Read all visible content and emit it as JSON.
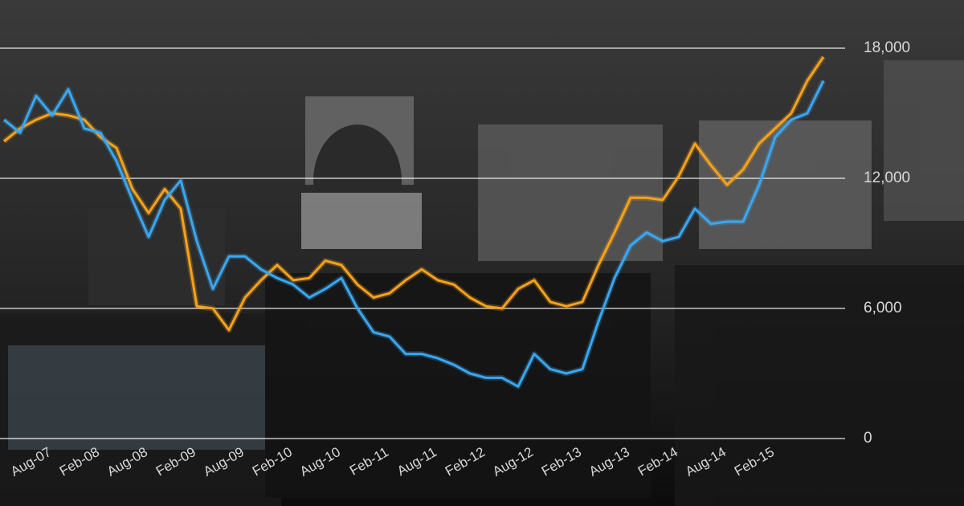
{
  "chart_data": {
    "type": "line",
    "categories": [
      null,
      null,
      null,
      "Aug-07",
      null,
      null,
      "Feb-08",
      null,
      null,
      "Aug-08",
      null,
      null,
      "Feb-09",
      null,
      null,
      "Aug-09",
      null,
      null,
      "Feb-10",
      null,
      null,
      "Aug-10",
      null,
      null,
      "Feb-11",
      null,
      null,
      "Aug-11",
      null,
      null,
      "Feb-12",
      null,
      null,
      "Aug-12",
      null,
      null,
      "Feb-13",
      null,
      null,
      "Aug-13",
      null,
      null,
      "Feb-14",
      null,
      null,
      "Aug-14",
      null,
      null,
      "Feb-15",
      null,
      null,
      null
    ],
    "series": [
      {
        "color": "#f7a21b",
        "values": [
          13700,
          14300,
          14700,
          15000,
          14900,
          14700,
          13900,
          13400,
          11500,
          10400,
          11500,
          10600,
          6100,
          6000,
          5000,
          6500,
          7300,
          8000,
          7300,
          7400,
          8200,
          8000,
          7100,
          6500,
          6700,
          7300,
          7800,
          7300,
          7100,
          6500,
          6100,
          6000,
          6900,
          7300,
          6300,
          6100,
          6300,
          8000,
          9500,
          11100,
          11100,
          11000,
          12100,
          13600,
          12600,
          11700,
          12400,
          13600,
          14300,
          15000,
          16500,
          17600
        ]
      },
      {
        "color": "#3ba7f0",
        "values": [
          14700,
          14100,
          15800,
          14900,
          16100,
          14300,
          14100,
          12800,
          11000,
          9300,
          11000,
          11900,
          9100,
          6900,
          8400,
          8400,
          7800,
          7400,
          7100,
          6500,
          6900,
          7400,
          6000,
          4900,
          4700,
          3900,
          3900,
          3700,
          3400,
          3000,
          2800,
          2800,
          2400,
          3900,
          3200,
          3000,
          3200,
          5400,
          7400,
          8900,
          9500,
          9100,
          9300,
          10600,
          9900,
          10000,
          10000,
          11700,
          13900,
          14700,
          15000,
          16500
        ]
      }
    ],
    "ylim": [
      0,
      18000
    ],
    "yticks": [
      0,
      {
        "value": 6000,
        "label": "6,000"
      },
      {
        "value": 12000,
        "label": "12,000"
      },
      {
        "value": 18000,
        "label": "18,000"
      }
    ],
    "grid": true
  }
}
